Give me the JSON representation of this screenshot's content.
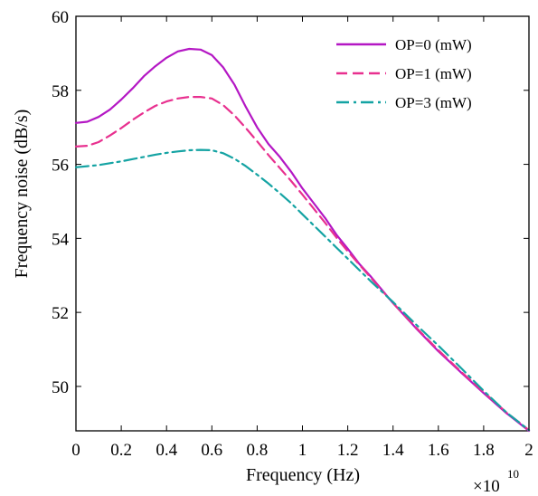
{
  "chart_data": {
    "type": "line",
    "title": "",
    "xlabel": "Frequency (Hz)",
    "ylabel": "Frequency noise (dB/s)",
    "x_multiplier": {
      "base": "×10",
      "exponent": "10"
    },
    "xlim": [
      0,
      2
    ],
    "ylim": [
      48.8,
      60
    ],
    "xticks": [
      0,
      0.2,
      0.4,
      0.6,
      0.8,
      1,
      1.2,
      1.4,
      1.6,
      1.8,
      2
    ],
    "xtick_labels": [
      "0",
      "0.2",
      "0.4",
      "0.6",
      "0.8",
      "1",
      "1.2",
      "1.4",
      "1.6",
      "1.8",
      "2"
    ],
    "yticks": [
      50,
      52,
      54,
      56,
      58,
      60
    ],
    "ytick_labels": [
      "50",
      "52",
      "54",
      "56",
      "58",
      "60"
    ],
    "grid": false,
    "legend_position": "top-right",
    "series": [
      {
        "name": "OP=0 (mW)",
        "color": "#b417c4",
        "style": "solid",
        "x": [
          0,
          0.05,
          0.1,
          0.15,
          0.2,
          0.25,
          0.3,
          0.35,
          0.4,
          0.45,
          0.5,
          0.55,
          0.6,
          0.65,
          0.7,
          0.75,
          0.8,
          0.85,
          0.9,
          0.95,
          1.0,
          1.05,
          1.1,
          1.15,
          1.2,
          1.25,
          1.3,
          1.4,
          1.5,
          1.6,
          1.7,
          1.8,
          1.9,
          2.0
        ],
        "y": [
          57.12,
          57.15,
          57.28,
          57.48,
          57.75,
          58.05,
          58.38,
          58.65,
          58.88,
          59.05,
          59.12,
          59.1,
          58.95,
          58.62,
          58.15,
          57.55,
          57.0,
          56.55,
          56.2,
          55.8,
          55.35,
          54.95,
          54.55,
          54.1,
          53.72,
          53.32,
          52.98,
          52.25,
          51.58,
          50.95,
          50.38,
          49.82,
          49.28,
          48.8
        ]
      },
      {
        "name": "OP=1 (mW)",
        "color": "#e8308f",
        "style": "dashed",
        "x": [
          0,
          0.05,
          0.1,
          0.15,
          0.2,
          0.25,
          0.3,
          0.35,
          0.4,
          0.45,
          0.5,
          0.55,
          0.6,
          0.65,
          0.7,
          0.75,
          0.8,
          0.85,
          0.9,
          0.95,
          1.0,
          1.05,
          1.1,
          1.15,
          1.2,
          1.25,
          1.3,
          1.4,
          1.5,
          1.6,
          1.7,
          1.8,
          1.9,
          2.0
        ],
        "y": [
          56.48,
          56.5,
          56.6,
          56.78,
          56.98,
          57.2,
          57.4,
          57.58,
          57.7,
          57.78,
          57.82,
          57.82,
          57.78,
          57.6,
          57.32,
          56.98,
          56.62,
          56.25,
          55.9,
          55.55,
          55.18,
          54.8,
          54.42,
          54.02,
          53.65,
          53.3,
          52.95,
          52.25,
          51.6,
          50.98,
          50.4,
          49.85,
          49.3,
          48.82
        ]
      },
      {
        "name": "OP=3 (mW)",
        "color": "#14a3a3",
        "style": "dashdot",
        "x": [
          0,
          0.05,
          0.1,
          0.15,
          0.2,
          0.25,
          0.3,
          0.35,
          0.4,
          0.45,
          0.5,
          0.55,
          0.6,
          0.65,
          0.7,
          0.75,
          0.8,
          0.85,
          0.9,
          0.95,
          1.0,
          1.05,
          1.1,
          1.15,
          1.2,
          1.25,
          1.3,
          1.4,
          1.5,
          1.6,
          1.7,
          1.8,
          1.9,
          2.0
        ],
        "y": [
          55.92,
          55.95,
          55.98,
          56.03,
          56.08,
          56.14,
          56.2,
          56.26,
          56.31,
          56.35,
          56.38,
          56.39,
          56.38,
          56.3,
          56.15,
          55.95,
          55.72,
          55.48,
          55.22,
          54.95,
          54.65,
          54.35,
          54.05,
          53.75,
          53.45,
          53.15,
          52.85,
          52.28,
          51.68,
          51.1,
          50.5,
          49.88,
          49.3,
          48.82
        ]
      }
    ]
  }
}
